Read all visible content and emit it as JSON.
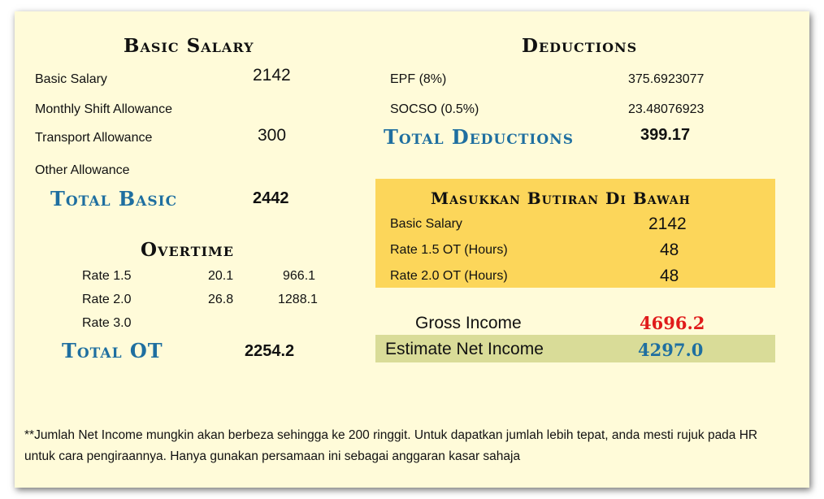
{
  "basic": {
    "title": "Basic Salary",
    "rows": [
      {
        "label": "Basic Salary",
        "value": "2142"
      },
      {
        "label": "Monthly Shift Allowance",
        "value": ""
      },
      {
        "label": "Transport Allowance",
        "value": "300"
      },
      {
        "label": "Other Allowance",
        "value": ""
      }
    ],
    "total_label": "Total Basic",
    "total_value": "2442"
  },
  "overtime": {
    "title": "Overtime",
    "rows": [
      {
        "label": "Rate 1.5",
        "rate": "20.1",
        "amount": "966.1"
      },
      {
        "label": "Rate 2.0",
        "rate": "26.8",
        "amount": "1288.1"
      },
      {
        "label": "Rate 3.0",
        "rate": "",
        "amount": ""
      }
    ],
    "total_label": "Total OT",
    "total_value": "2254.2"
  },
  "deductions": {
    "title": "Deductions",
    "rows": [
      {
        "label": "EPF (8%)",
        "value": "375.6923077"
      },
      {
        "label": "SOCSO (0.5%)",
        "value": "23.48076923"
      }
    ],
    "total_label": "Total Deductions",
    "total_value": "399.17"
  },
  "input": {
    "title": "Masukkan Butiran Di Bawah",
    "rows": [
      {
        "label": "Basic Salary",
        "value": "2142"
      },
      {
        "label": "Rate 1.5 OT (Hours)",
        "value": "48"
      },
      {
        "label": "Rate 2.0 OT (Hours)",
        "value": "48"
      }
    ]
  },
  "summary": {
    "gross_label": "Gross Income",
    "gross_value": "4696.2",
    "net_label": "Estimate Net Income",
    "net_value": "4297.0"
  },
  "note": "**Jumlah Net Income mungkin akan berbeza sehingga ke 200 ringgit. Untuk dapatkan jumlah lebih tepat, anda mesti rujuk pada HR untuk cara pengiraannya. Hanya gunakan persamaan ini sebagai anggaran kasar sahaja",
  "colors": {
    "background": "#fffbd9",
    "input_box": "#fcd65a",
    "net_box": "#d9dc98",
    "accent_blue": "#1f6fa0",
    "gross_red": "#e01b1b"
  }
}
